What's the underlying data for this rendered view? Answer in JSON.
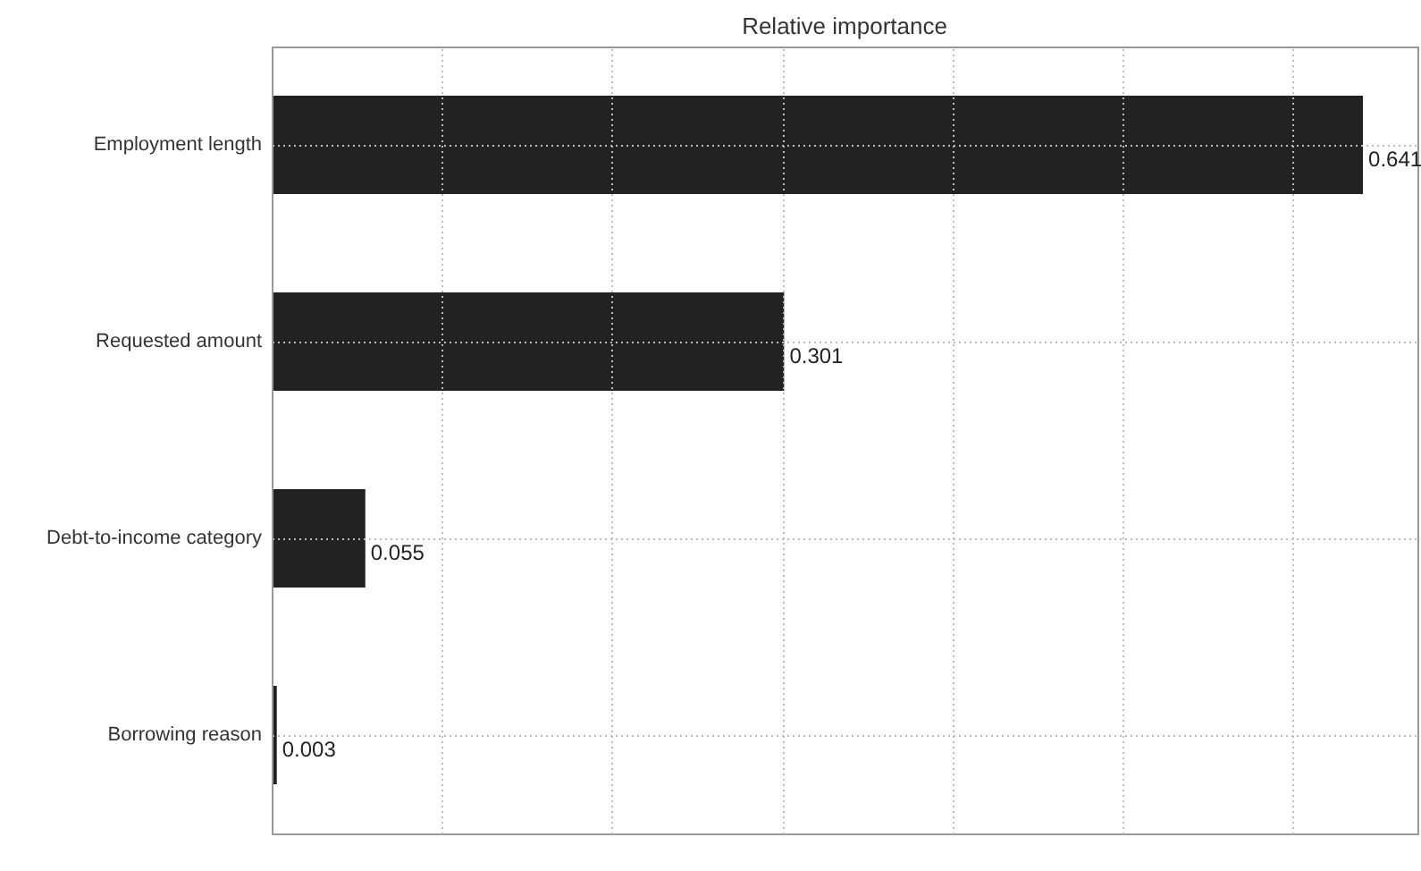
{
  "chart_data": {
    "type": "bar",
    "orientation": "horizontal",
    "title": "Relative importance",
    "categories": [
      "Employment length",
      "Requested amount",
      "Debt-to-income category",
      "Borrowing reason"
    ],
    "values": [
      0.641,
      0.301,
      0.055,
      0.003
    ],
    "color": "#222222",
    "xlim": [
      0,
      0.673
    ],
    "xticks": [
      {
        "value": 0,
        "label": null
      },
      {
        "value": 0.1,
        "label": null
      },
      {
        "value": 0.2,
        "label": null
      },
      {
        "value": 0.3,
        "label": null
      },
      {
        "value": 0.4,
        "label": null
      },
      {
        "value": 0.5,
        "label": null
      },
      {
        "value": 0.6,
        "label": null
      }
    ],
    "tick_labels": "y",
    "grid": true,
    "data_labels": true
  }
}
